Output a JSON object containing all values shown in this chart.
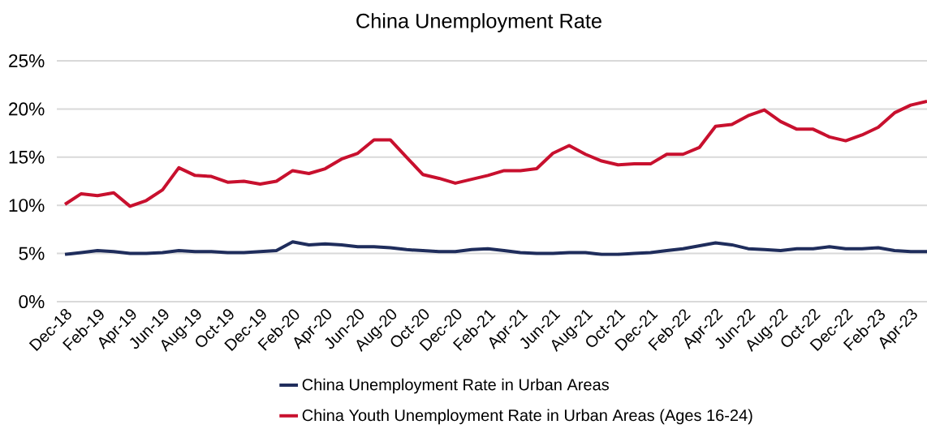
{
  "chart_data": {
    "type": "line",
    "title": "China Unemployment Rate",
    "categories": [
      "Dec-18",
      null,
      "Feb-19",
      null,
      "Apr-19",
      null,
      "Jun-19",
      null,
      "Aug-19",
      null,
      "Oct-19",
      null,
      "Dec-19",
      null,
      "Feb-20",
      null,
      "Apr-20",
      null,
      "Jun-20",
      null,
      "Aug-20",
      null,
      "Oct-20",
      null,
      "Dec-20",
      null,
      "Feb-21",
      null,
      "Apr-21",
      null,
      "Jun-21",
      null,
      "Aug-21",
      null,
      "Oct-21",
      null,
      "Dec-21",
      null,
      "Feb-22",
      null,
      "Apr-22",
      null,
      "Jun-22",
      null,
      "Aug-22",
      null,
      "Oct-22",
      null,
      "Dec-22",
      null,
      "Feb-23",
      null,
      "Apr-23",
      null
    ],
    "series": [
      {
        "name": "China Unemployment Rate in Urban Areas",
        "color": "#1f2d5c",
        "values": [
          4.9,
          5.1,
          5.3,
          5.2,
          5.0,
          5.0,
          5.1,
          5.3,
          5.2,
          5.2,
          5.1,
          5.1,
          5.2,
          5.3,
          6.2,
          5.9,
          6.0,
          5.9,
          5.7,
          5.7,
          5.6,
          5.4,
          5.3,
          5.2,
          5.2,
          5.4,
          5.5,
          5.3,
          5.1,
          5.0,
          5.0,
          5.1,
          5.1,
          4.9,
          4.9,
          5.0,
          5.1,
          5.3,
          5.5,
          5.8,
          6.1,
          5.9,
          5.5,
          5.4,
          5.3,
          5.5,
          5.5,
          5.7,
          5.5,
          5.5,
          5.6,
          5.3,
          5.2,
          5.2
        ]
      },
      {
        "name": "China Youth Unemployment Rate in Urban Areas (Ages 16-24)",
        "color": "#c8102e",
        "values": [
          10.1,
          11.2,
          11.0,
          11.3,
          9.9,
          10.5,
          11.6,
          13.9,
          13.1,
          13.0,
          12.4,
          12.5,
          12.2,
          12.5,
          13.6,
          13.3,
          13.8,
          14.8,
          15.4,
          16.8,
          16.8,
          15.0,
          13.2,
          12.8,
          12.3,
          12.7,
          13.1,
          13.6,
          13.6,
          13.8,
          15.4,
          16.2,
          15.3,
          14.6,
          14.2,
          14.3,
          14.3,
          15.3,
          15.3,
          16.0,
          18.2,
          18.4,
          19.3,
          19.9,
          18.7,
          17.9,
          17.9,
          17.1,
          16.7,
          17.3,
          18.1,
          19.6,
          20.4,
          20.8
        ]
      }
    ],
    "ylim": [
      0,
      25
    ],
    "yticks": [
      {
        "value": 0,
        "label": "0%"
      },
      {
        "value": 5,
        "label": "5%"
      },
      {
        "value": 10,
        "label": "10%"
      },
      {
        "value": 15,
        "label": "15%"
      },
      {
        "value": 20,
        "label": "20%"
      },
      {
        "value": 25,
        "label": "25%"
      }
    ],
    "grid": "y",
    "legend": "bottom",
    "marker": "none",
    "line_style": "solid"
  }
}
